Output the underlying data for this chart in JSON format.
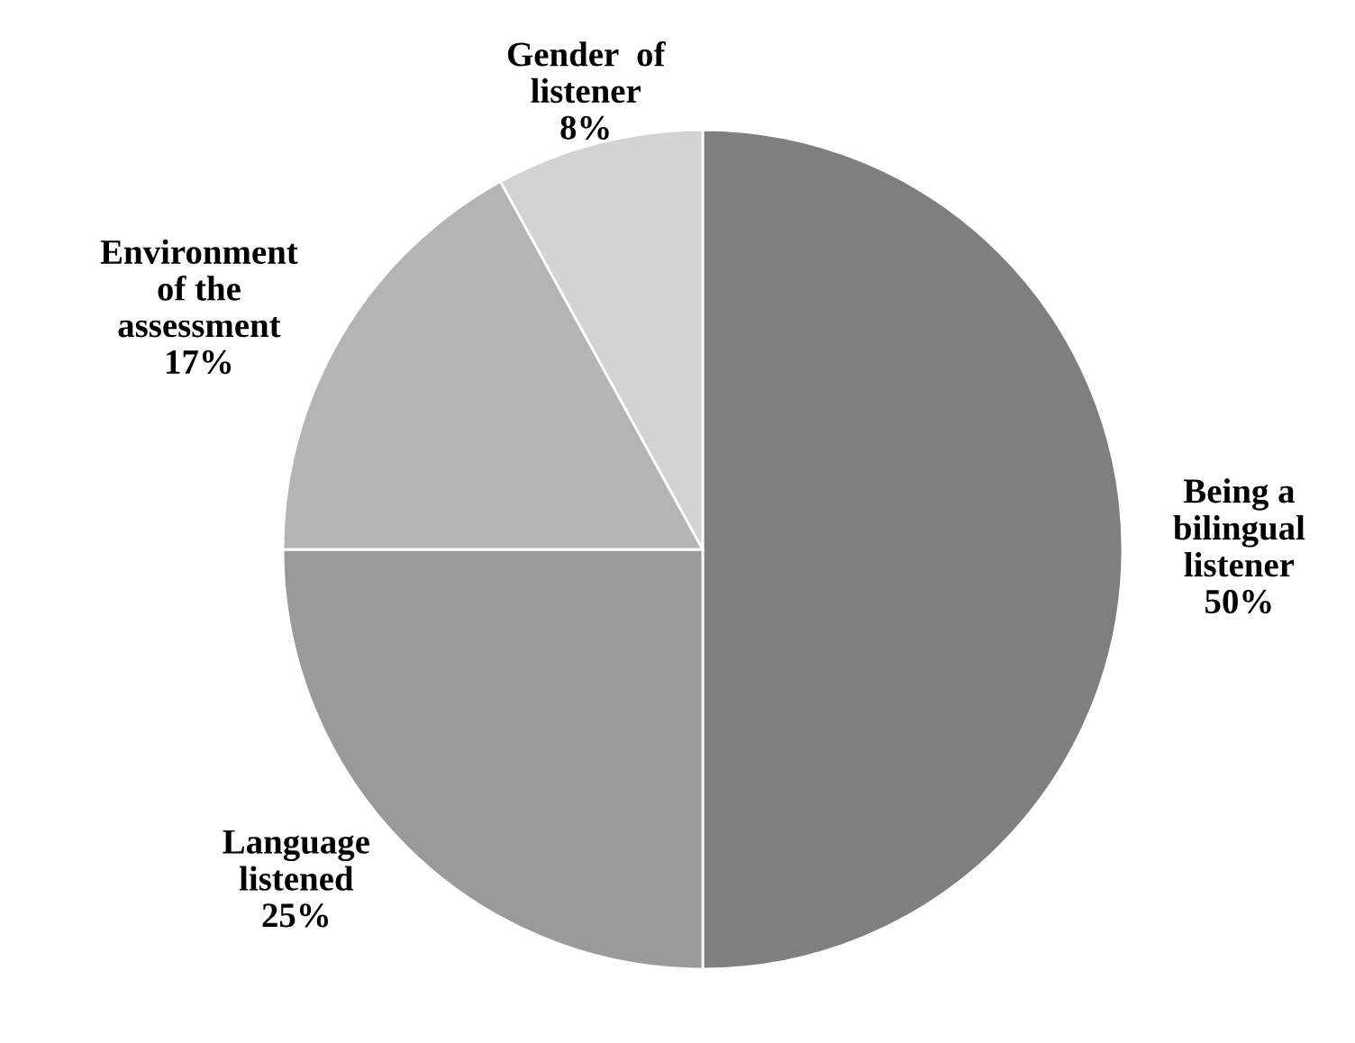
{
  "chart_data": {
    "type": "pie",
    "categories": [
      "Being a\nbilingual\nlistener",
      "Language\nlistened",
      "Environment\nof the\nassessment",
      "Gender  of\nlistener"
    ],
    "values": [
      50,
      25,
      17,
      8
    ],
    "value_labels": [
      "50%",
      "25%",
      "17%",
      "8%"
    ],
    "colors": [
      "#7f7f7f",
      "#9a9a9a",
      "#b4b4b4",
      "#d3d3d3"
    ]
  }
}
